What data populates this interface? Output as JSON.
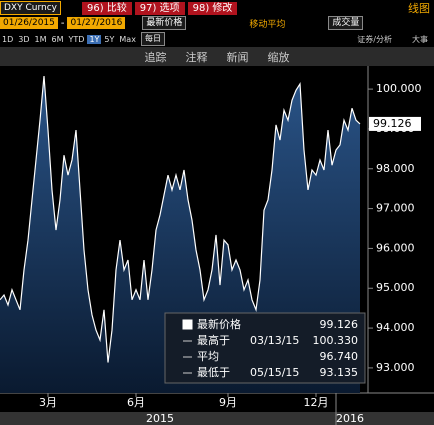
{
  "header": {
    "ticker": "DXY Curncy",
    "buttons": [
      "96) 比较",
      "97) 选项",
      "98) 修改"
    ],
    "view": "线图",
    "start_date": "01/26/2015",
    "date_sep": "-",
    "end_date": "01/27/2016",
    "price_field": "最新价格",
    "ma_label": "移动平均",
    "volume_field": "成交量",
    "ranges": [
      "1D",
      "3D",
      "1M",
      "6M",
      "YTD",
      "1Y",
      "5Y",
      "Max"
    ],
    "active_range": "1Y",
    "frequency": "每日",
    "tools": [
      "证券/分析",
      "大事"
    ],
    "actions": [
      "追踪",
      "注释",
      "新闻",
      "缩放"
    ]
  },
  "chart_data": {
    "type": "line",
    "color": "#ffffff",
    "fill": "#1d3d66",
    "values": [
      94.71,
      94.83,
      94.58,
      94.96,
      94.71,
      94.46,
      95.46,
      96.21,
      97.22,
      98.22,
      99.22,
      100.33,
      98.97,
      97.47,
      96.46,
      97.22,
      98.34,
      97.84,
      98.22,
      98.97,
      97.47,
      95.96,
      94.96,
      94.33,
      93.95,
      93.7,
      94.46,
      93.135,
      93.95,
      95.46,
      96.21,
      95.46,
      95.71,
      94.71,
      94.96,
      94.71,
      95.71,
      94.71,
      95.46,
      96.46,
      96.84,
      97.34,
      97.84,
      97.47,
      97.84,
      97.47,
      97.97,
      97.22,
      96.71,
      95.96,
      95.46,
      94.71,
      94.96,
      95.46,
      96.34,
      95.08,
      96.21,
      96.09,
      95.46,
      95.71,
      95.46,
      94.96,
      95.21,
      94.71,
      94.46,
      95.21,
      96.96,
      97.22,
      97.97,
      99.1,
      98.72,
      99.47,
      99.22,
      99.72,
      99.97,
      100.13,
      98.47,
      97.47,
      97.97,
      97.84,
      98.22,
      97.97,
      98.97,
      98.09,
      98.47,
      98.6,
      99.22,
      98.97,
      99.52,
      99.22,
      99.126
    ],
    "xlim": [
      0,
      90
    ],
    "xticks": [
      {
        "value": 12,
        "label": "3月"
      },
      {
        "value": 34,
        "label": "6月"
      },
      {
        "value": 57,
        "label": "9月"
      },
      {
        "value": 79,
        "label": "12月"
      }
    ],
    "year_labels": [
      {
        "value": 40,
        "label": "2015"
      },
      {
        "value": 87.5,
        "label": "2016"
      }
    ],
    "ylim": [
      92.37,
      100.58
    ],
    "yticks": [
      {
        "value": 93,
        "label": "93.000"
      },
      {
        "value": 94,
        "label": "94.000"
      },
      {
        "value": 95,
        "label": "95.000"
      },
      {
        "value": 96,
        "label": "96.000"
      },
      {
        "value": 97,
        "label": "97.000"
      },
      {
        "value": 98,
        "label": "98.000"
      },
      {
        "value": 99,
        "label": "99.000"
      },
      {
        "value": 100,
        "label": "100.000"
      }
    ],
    "grid": false,
    "last_price_tag": {
      "value": 99.126,
      "label": "99.126"
    },
    "stats": [
      {
        "label": "最新价格",
        "value": "99.126"
      },
      {
        "label": "最高于",
        "date": "03/13/15",
        "value": "100.330"
      },
      {
        "label": "平均",
        "value": "96.740"
      },
      {
        "label": "最低于",
        "date": "05/15/15",
        "value": "93.135"
      }
    ]
  }
}
